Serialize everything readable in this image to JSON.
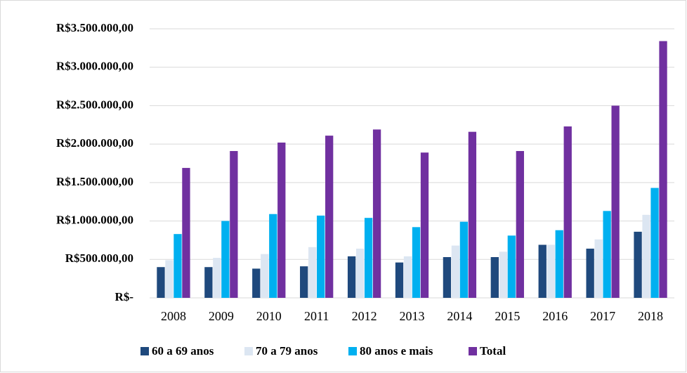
{
  "chart_data": {
    "type": "bar",
    "categories": [
      "2008",
      "2009",
      "2010",
      "2011",
      "2012",
      "2013",
      "2014",
      "2015",
      "2016",
      "2017",
      "2018"
    ],
    "series": [
      {
        "name": "60 a 69 anos",
        "color": "#1f497d",
        "values": [
          400000,
          400000,
          380000,
          410000,
          540000,
          460000,
          530000,
          530000,
          690000,
          640000,
          860000
        ]
      },
      {
        "name": "70 a 79 anos",
        "color": "#dce6f2",
        "values": [
          490000,
          520000,
          570000,
          660000,
          640000,
          540000,
          680000,
          600000,
          690000,
          760000,
          1080000
        ]
      },
      {
        "name": "80 anos e mais",
        "color": "#00b0f0",
        "values": [
          830000,
          1000000,
          1090000,
          1070000,
          1040000,
          920000,
          990000,
          810000,
          880000,
          1130000,
          1430000
        ]
      },
      {
        "name": "Total",
        "color": "#7030a0",
        "values": [
          1690000,
          1910000,
          2020000,
          2110000,
          2190000,
          1890000,
          2160000,
          1910000,
          2230000,
          2500000,
          3340000
        ]
      }
    ],
    "ylim": [
      0,
      3500000
    ],
    "yticks": [
      {
        "value": 0,
        "label": "R$-"
      },
      {
        "value": 500000,
        "label": "R$500.000,00"
      },
      {
        "value": 1000000,
        "label": "R$1.000.000,00"
      },
      {
        "value": 1500000,
        "label": "R$1.500.000,00"
      },
      {
        "value": 2000000,
        "label": "R$2.000.000,00"
      },
      {
        "value": 2500000,
        "label": "R$2.500.000,00"
      },
      {
        "value": 3000000,
        "label": "R$3.000.000,00"
      },
      {
        "value": 3500000,
        "label": "R$3.500.000,00"
      }
    ],
    "grid": true,
    "legend": "bottom"
  }
}
